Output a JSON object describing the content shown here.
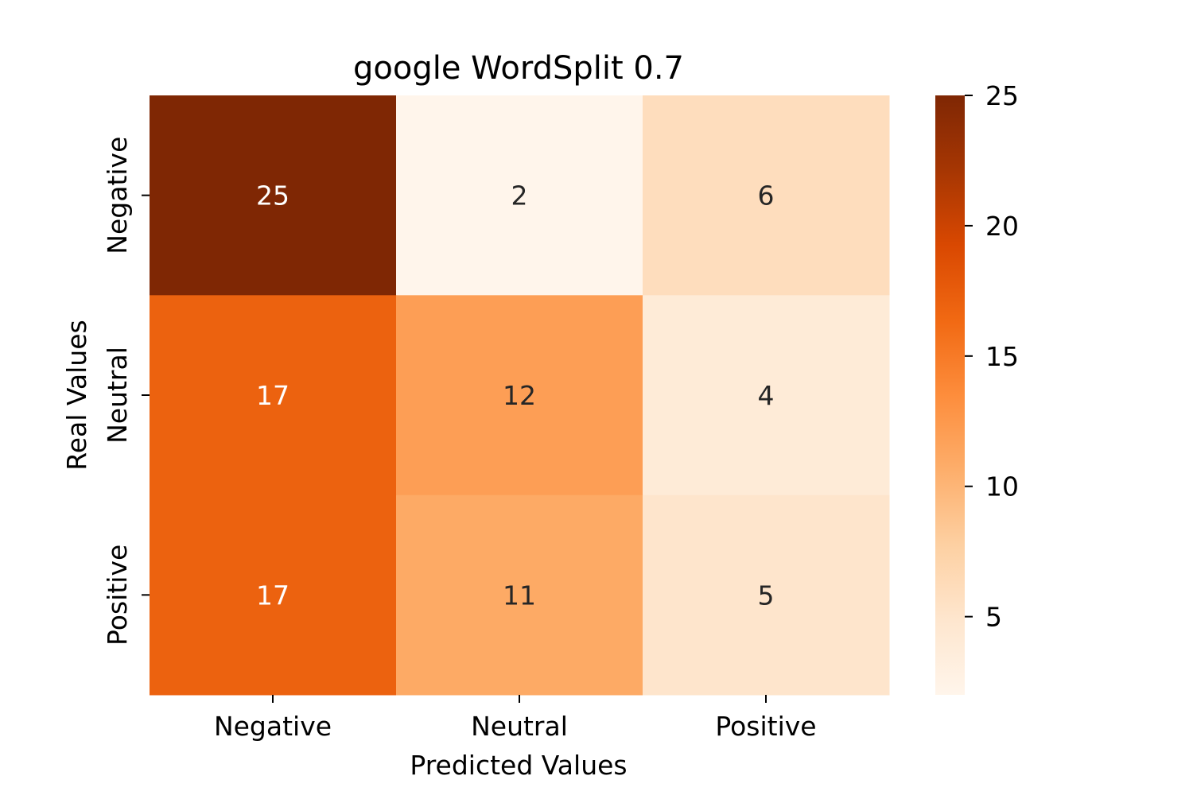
{
  "chart_data": {
    "type": "heatmap",
    "title": "google WordSplit 0.7",
    "xlabel": "Predicted Values",
    "ylabel": "Real Values",
    "x_categories": [
      "Negative",
      "Neutral",
      "Positive"
    ],
    "y_categories": [
      "Negative",
      "Neutral",
      "Positive"
    ],
    "values": [
      [
        25,
        2,
        6
      ],
      [
        17,
        12,
        4
      ],
      [
        17,
        11,
        5
      ]
    ],
    "colormap": "Oranges",
    "color_range": [
      2,
      25
    ],
    "colorbar_ticks": [
      5,
      10,
      15,
      20,
      25
    ],
    "colorbar_tick_labels": [
      "5",
      "10",
      "15",
      "20",
      "25"
    ],
    "annotation_colors": {
      "light": "#ffffff",
      "dark": "#262626"
    }
  }
}
